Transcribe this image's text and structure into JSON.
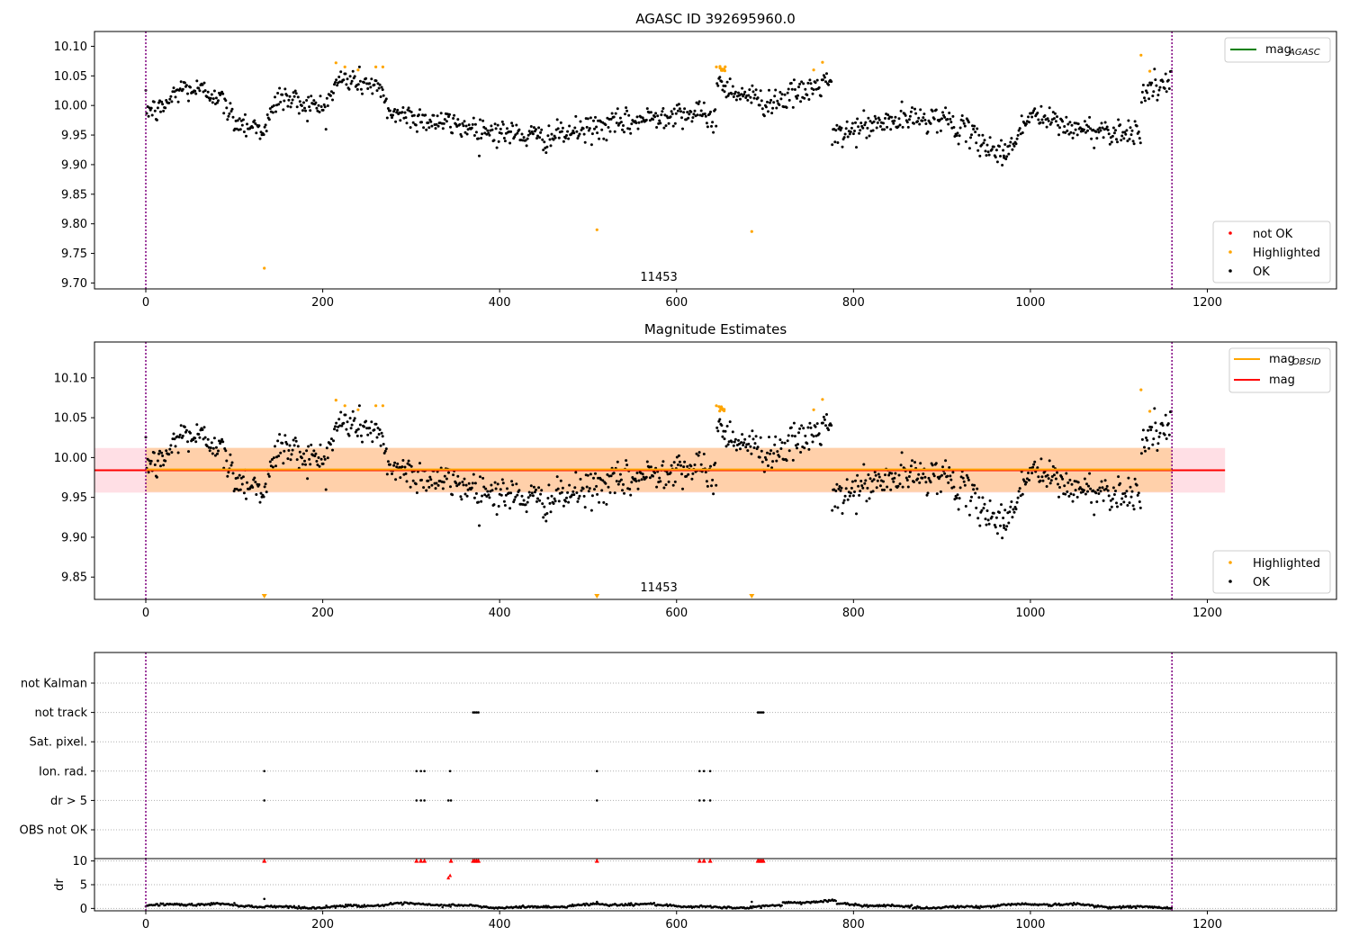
{
  "chart_data": [
    {
      "type": "scatter",
      "title": "AGASC ID 392695960.0",
      "annotation": "11453",
      "xlim": [
        -58,
        1346
      ],
      "ylim": [
        9.69,
        10.125
      ],
      "xticks": [
        "0",
        "200",
        "400",
        "600",
        "800",
        "1000",
        "1200"
      ],
      "xtick_values": [
        0,
        200,
        400,
        600,
        800,
        1000,
        1200
      ],
      "yticks": [
        "9.70",
        "9.75",
        "9.80",
        "9.85",
        "9.90",
        "9.95",
        "10.00",
        "10.05",
        "10.10"
      ],
      "ytick_values": [
        9.7,
        9.75,
        9.8,
        9.85,
        9.9,
        9.95,
        10.0,
        10.05,
        10.1
      ],
      "vlines": [
        0,
        1160
      ],
      "legend_lines": [
        {
          "name": "mag_AGASC",
          "label_main": "mag",
          "label_sub": "AGASC",
          "color": "#008000"
        }
      ],
      "legend_points": [
        {
          "name": "not OK",
          "label": "not OK",
          "color": "#ff0000"
        },
        {
          "name": "Highlighted",
          "label": "Highlighted",
          "color": "#ffa500"
        },
        {
          "name": "OK",
          "label": "OK",
          "color": "#000000"
        }
      ],
      "series": [
        {
          "name": "OK",
          "color": "#000000",
          "points": [
            [
              0,
              9.995
            ],
            [
              15,
              9.99
            ],
            [
              40,
              10.03
            ],
            [
              80,
              10.02
            ],
            [
              100,
              9.975
            ],
            [
              135,
              9.96
            ],
            [
              150,
              10.015
            ],
            [
              200,
              9.995
            ],
            [
              220,
              10.045
            ],
            [
              260,
              10.035
            ],
            [
              275,
              9.99
            ],
            [
              320,
              9.975
            ],
            [
              400,
              9.955
            ],
            [
              450,
              9.945
            ],
            [
              500,
              9.96
            ],
            [
              560,
              9.975
            ],
            [
              600,
              9.99
            ],
            [
              640,
              9.98
            ],
            [
              650,
              10.035
            ],
            [
              700,
              10.005
            ],
            [
              740,
              10.02
            ],
            [
              770,
              10.04
            ],
            [
              780,
              9.945
            ],
            [
              800,
              9.96
            ],
            [
              850,
              9.975
            ],
            [
              900,
              9.98
            ],
            [
              970,
              9.915
            ],
            [
              1000,
              9.985
            ],
            [
              1050,
              9.96
            ],
            [
              1120,
              9.955
            ],
            [
              1130,
              10.025
            ],
            [
              1160,
              10.035
            ]
          ]
        },
        {
          "name": "Highlighted",
          "color": "#ffa500",
          "points": [
            [
              134,
              9.725
            ],
            [
              215,
              10.072
            ],
            [
              225,
              10.065
            ],
            [
              240,
              10.06
            ],
            [
              260,
              10.065
            ],
            [
              268,
              10.065
            ],
            [
              510,
              9.79
            ],
            [
              645,
              10.065
            ],
            [
              652,
              10.06
            ],
            [
              685,
              9.787
            ],
            [
              755,
              10.06
            ],
            [
              765,
              10.073
            ],
            [
              1125,
              10.085
            ],
            [
              1135,
              10.058
            ]
          ]
        }
      ]
    },
    {
      "type": "scatter",
      "title": "Magnitude Estimates",
      "annotation": "11453",
      "xlim": [
        -58,
        1346
      ],
      "ylim": [
        9.822,
        10.145
      ],
      "xticks": [
        "0",
        "200",
        "400",
        "600",
        "800",
        "1000",
        "1200"
      ],
      "xtick_values": [
        0,
        200,
        400,
        600,
        800,
        1000,
        1200
      ],
      "yticks": [
        "9.85",
        "9.90",
        "9.95",
        "10.00",
        "10.05",
        "10.10"
      ],
      "ytick_values": [
        9.85,
        9.9,
        9.95,
        10.0,
        10.05,
        10.1
      ],
      "vlines": [
        0,
        1160
      ],
      "mag": 9.984,
      "mag_obsid": 9.985,
      "band_obsid": [
        9.957,
        10.012
      ],
      "band_mag": [
        9.956,
        10.012
      ],
      "band_x": [
        -58,
        1220
      ],
      "legend_lines": [
        {
          "name": "mag_OBSID",
          "label_main": "mag",
          "label_sub": "OBSID",
          "color": "#ffa500"
        },
        {
          "name": "mag",
          "label_main": "mag",
          "label_sub": "",
          "color": "#ff0000"
        }
      ],
      "legend_points": [
        {
          "name": "Highlighted",
          "label": "Highlighted",
          "color": "#ffa500"
        },
        {
          "name": "OK",
          "label": "OK",
          "color": "#000000"
        }
      ],
      "offscale_markers_x": [
        134,
        510,
        685
      ]
    },
    {
      "type": "scatter",
      "title": "",
      "xlim": [
        -58,
        1346
      ],
      "categories": [
        "not Kalman",
        "not track",
        "Sat. pixel.",
        "Ion. rad.",
        "dr > 5",
        "OBS not OK"
      ],
      "vlines": [
        0,
        1160
      ],
      "flags": {
        "not track": [
          370,
          372,
          374,
          376,
          692,
          694,
          696,
          698
        ],
        "Ion. rad.": [
          134,
          306,
          311,
          315,
          344,
          510,
          626,
          631,
          638
        ],
        "dr > 5": [
          134,
          306,
          311,
          315,
          342,
          345,
          510,
          626,
          631,
          638
        ]
      }
    },
    {
      "type": "scatter",
      "title": "",
      "ylabel": "dr",
      "xlim": [
        -58,
        1346
      ],
      "ylim": [
        -0.5,
        10.5
      ],
      "yticks": [
        "0",
        "5",
        "10"
      ],
      "ytick_values": [
        0,
        5,
        10
      ],
      "xticks": [
        "0",
        "200",
        "400",
        "600",
        "800",
        "1000",
        "1200"
      ],
      "xtick_values": [
        0,
        200,
        400,
        600,
        800,
        1000,
        1200
      ],
      "vlines": [
        0,
        1160
      ],
      "clipped_x": [
        134,
        306,
        311,
        315,
        345,
        370,
        372,
        374,
        376,
        510,
        626,
        631,
        638,
        692,
        694,
        696,
        698
      ],
      "dr_red_points": [
        [
          342,
          6.5
        ],
        [
          344,
          7.0
        ]
      ],
      "dr_outliers": [
        [
          134,
          2.0
        ],
        [
          510,
          1.4
        ],
        [
          685,
          1.4
        ]
      ]
    }
  ]
}
